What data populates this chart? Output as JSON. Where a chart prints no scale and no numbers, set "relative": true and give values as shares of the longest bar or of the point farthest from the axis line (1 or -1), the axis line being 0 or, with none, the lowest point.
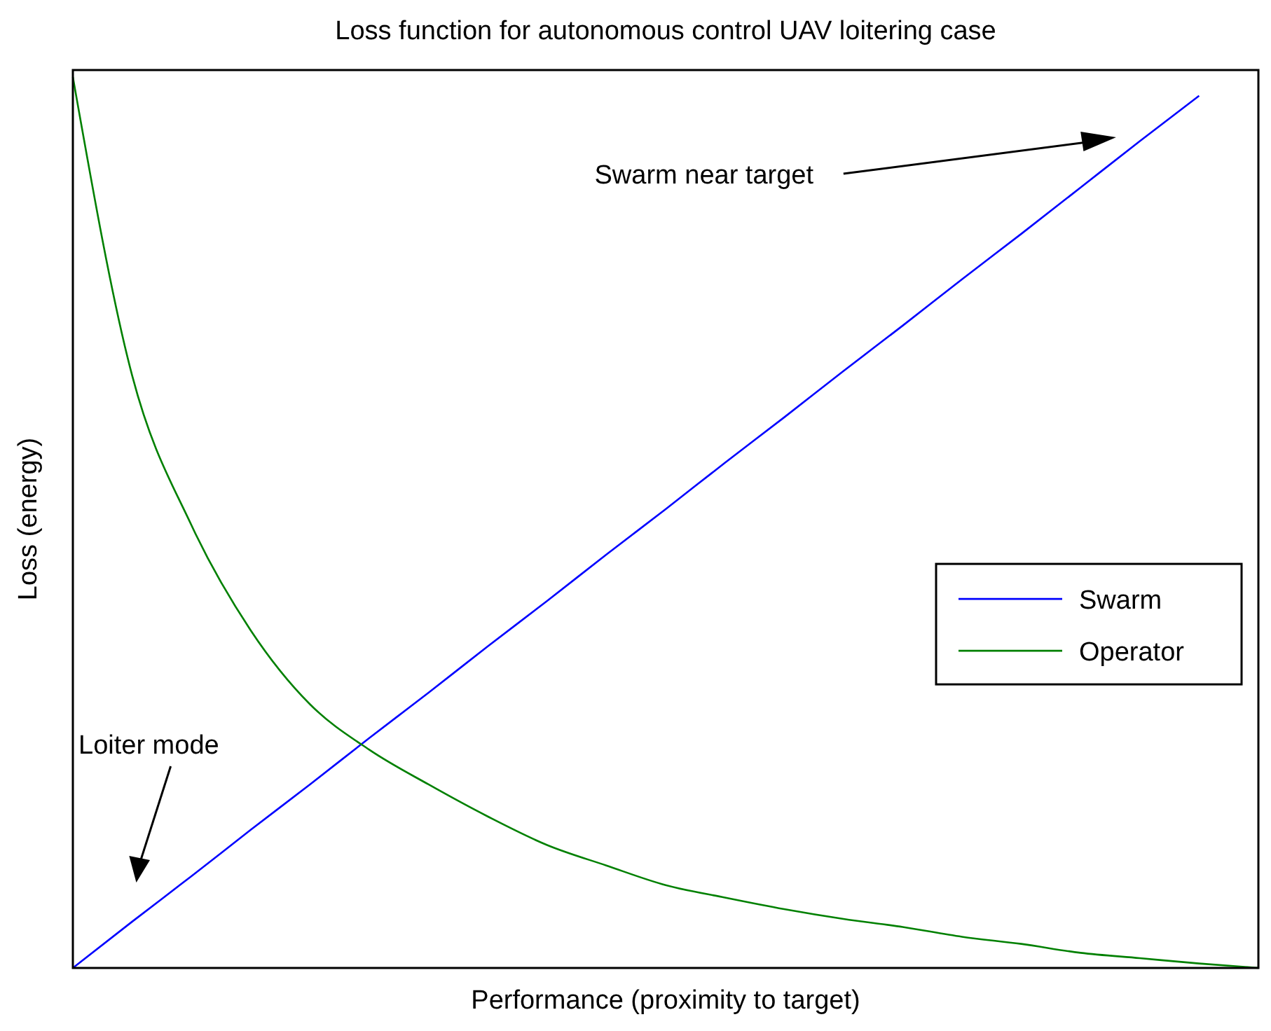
{
  "chart_data": {
    "type": "line",
    "title": "Loss function for autonomous control UAV loitering case",
    "xlabel": "Performance (proximity to target)",
    "ylabel": "Loss (energy)",
    "relative": true,
    "categories": [
      null,
      null,
      null,
      null,
      null,
      null,
      null,
      null,
      null,
      null,
      null,
      null,
      null,
      null,
      null,
      null,
      null,
      null,
      null,
      null,
      null
    ],
    "series": [
      {
        "name": "Swarm",
        "color": "#0000ff",
        "values": [
          0,
          0.052,
          0.103,
          0.155,
          0.206,
          0.258,
          0.309,
          0.361,
          0.412,
          0.464,
          0.515,
          0.567,
          0.618,
          0.67,
          0.721,
          0.773,
          0.824,
          0.876,
          0.928,
          0.979,
          null
        ]
      },
      {
        "name": "Operator",
        "color": "#008000",
        "values": [
          1,
          0.665,
          0.497,
          0.379,
          0.296,
          0.245,
          0.206,
          0.17,
          0.138,
          0.115,
          0.093,
          0.079,
          0.066,
          0.055,
          0.046,
          0.035,
          0.027,
          0.017,
          0.011,
          0.005,
          0
        ]
      }
    ],
    "annotations": [
      "Swarm near target",
      "Loiter mode"
    ],
    "legend": "right",
    "grid": false,
    "marker": "none",
    "line_style": "solid"
  }
}
